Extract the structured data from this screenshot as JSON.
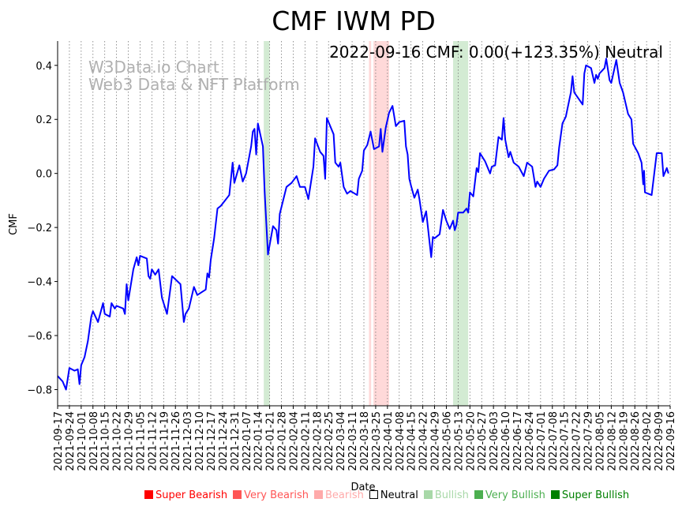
{
  "chart_data": {
    "type": "line",
    "title": "CMF IWM PD",
    "annotation": "2022-09-16 CMF: 0.00(+123.35%) Neutral",
    "watermark": [
      "W3Data.io Chart",
      "Web3 Data & NFT Platform"
    ],
    "xlabel": "Date",
    "ylabel": "CMF",
    "ylim": [
      -0.86,
      0.49
    ],
    "yticks": [
      -0.8,
      -0.6,
      -0.4,
      -0.2,
      0.0,
      0.2,
      0.4
    ],
    "ytick_labels": [
      "−0.8",
      "−0.6",
      "−0.4",
      "−0.2",
      "0.0",
      "0.2",
      "0.4"
    ],
    "x_start_date": "2021-09-17",
    "x_unit": "days since 2021-09-17",
    "xlim": [
      0,
      364
    ],
    "xtick_labels": [
      "2021-09-17",
      "2021-09-24",
      "2021-10-01",
      "2021-10-08",
      "2021-10-15",
      "2021-10-22",
      "2021-10-29",
      "2021-11-05",
      "2021-11-12",
      "2021-11-19",
      "2021-11-26",
      "2021-12-03",
      "2021-12-10",
      "2021-12-17",
      "2021-12-24",
      "2021-12-31",
      "2022-01-07",
      "2022-01-14",
      "2022-01-21",
      "2022-01-28",
      "2022-02-04",
      "2022-02-11",
      "2022-02-18",
      "2022-02-25",
      "2022-03-04",
      "2022-03-11",
      "2022-03-18",
      "2022-03-25",
      "2022-04-01",
      "2022-04-08",
      "2022-04-15",
      "2022-04-22",
      "2022-04-29",
      "2022-05-06",
      "2022-05-13",
      "2022-05-20",
      "2022-05-27",
      "2022-06-03",
      "2022-06-10",
      "2022-06-17",
      "2022-06-24",
      "2022-07-01",
      "2022-07-08",
      "2022-07-15",
      "2022-07-22",
      "2022-07-29",
      "2022-08-05",
      "2022-08-12",
      "2022-08-19",
      "2022-08-26",
      "2022-09-02",
      "2022-09-09",
      "2022-09-16"
    ],
    "grid": "vertical dotted",
    "series": [
      {
        "name": "CMF",
        "color": "#0000ff",
        "points": [
          [
            0,
            -0.75
          ],
          [
            3,
            -0.77
          ],
          [
            5,
            -0.8
          ],
          [
            7,
            -0.72
          ],
          [
            10,
            -0.73
          ],
          [
            12,
            -0.725
          ],
          [
            13,
            -0.78
          ],
          [
            14,
            -0.71
          ],
          [
            16,
            -0.68
          ],
          [
            18,
            -0.62
          ],
          [
            20,
            -0.53
          ],
          [
            21,
            -0.51
          ],
          [
            24,
            -0.55
          ],
          [
            27,
            -0.48
          ],
          [
            28,
            -0.52
          ],
          [
            31,
            -0.53
          ],
          [
            32,
            -0.48
          ],
          [
            34,
            -0.5
          ],
          [
            35,
            -0.49
          ],
          [
            39,
            -0.5
          ],
          [
            40,
            -0.52
          ],
          [
            41,
            -0.41
          ],
          [
            42,
            -0.47
          ],
          [
            45,
            -0.355
          ],
          [
            47,
            -0.31
          ],
          [
            48,
            -0.34
          ],
          [
            49,
            -0.305
          ],
          [
            53,
            -0.315
          ],
          [
            54,
            -0.38
          ],
          [
            55,
            -0.39
          ],
          [
            56,
            -0.355
          ],
          [
            58,
            -0.375
          ],
          [
            60,
            -0.355
          ],
          [
            62,
            -0.46
          ],
          [
            65,
            -0.52
          ],
          [
            68,
            -0.38
          ],
          [
            73,
            -0.41
          ],
          [
            75,
            -0.55
          ],
          [
            76,
            -0.52
          ],
          [
            78,
            -0.5
          ],
          [
            81,
            -0.42
          ],
          [
            83,
            -0.45
          ],
          [
            88,
            -0.43
          ],
          [
            89,
            -0.37
          ],
          [
            90,
            -0.385
          ],
          [
            91,
            -0.32
          ],
          [
            93,
            -0.24
          ],
          [
            95,
            -0.13
          ],
          [
            97,
            -0.12
          ],
          [
            102,
            -0.08
          ],
          [
            104,
            0.04
          ],
          [
            105,
            -0.035
          ],
          [
            108,
            0.03
          ],
          [
            110,
            -0.03
          ],
          [
            112,
            0.0
          ],
          [
            115,
            0.1
          ],
          [
            116,
            0.155
          ],
          [
            117,
            0.165
          ],
          [
            118,
            0.07
          ],
          [
            119,
            0.185
          ],
          [
            122,
            0.1
          ],
          [
            123,
            -0.065
          ],
          [
            125,
            -0.3
          ],
          [
            128,
            -0.195
          ],
          [
            130,
            -0.21
          ],
          [
            131,
            -0.26
          ],
          [
            132,
            -0.15
          ],
          [
            136,
            -0.05
          ],
          [
            139,
            -0.035
          ],
          [
            142,
            -0.01
          ],
          [
            144,
            -0.05
          ],
          [
            147,
            -0.05
          ],
          [
            149,
            -0.095
          ],
          [
            152,
            0.025
          ],
          [
            153,
            0.13
          ],
          [
            156,
            0.08
          ],
          [
            158,
            0.065
          ],
          [
            159,
            -0.02
          ],
          [
            160,
            0.205
          ],
          [
            164,
            0.145
          ],
          [
            165,
            0.04
          ],
          [
            167,
            0.025
          ],
          [
            168,
            0.04
          ],
          [
            170,
            -0.05
          ],
          [
            172,
            -0.075
          ],
          [
            174,
            -0.065
          ],
          [
            178,
            -0.08
          ],
          [
            179,
            -0.02
          ],
          [
            181,
            0.01
          ],
          [
            182,
            0.085
          ],
          [
            184,
            0.105
          ],
          [
            186,
            0.155
          ],
          [
            188,
            0.09
          ],
          [
            191,
            0.1
          ],
          [
            192,
            0.165
          ],
          [
            193,
            0.08
          ],
          [
            195,
            0.17
          ],
          [
            197,
            0.225
          ],
          [
            199,
            0.25
          ],
          [
            201,
            0.175
          ],
          [
            203,
            0.19
          ],
          [
            206,
            0.195
          ],
          [
            207,
            0.1
          ],
          [
            208,
            0.07
          ],
          [
            209,
            -0.02
          ],
          [
            210,
            -0.045
          ],
          [
            212,
            -0.09
          ],
          [
            214,
            -0.06
          ],
          [
            215,
            -0.095
          ],
          [
            217,
            -0.18
          ],
          [
            219,
            -0.14
          ],
          [
            222,
            -0.31
          ],
          [
            223,
            -0.235
          ],
          [
            224,
            -0.24
          ],
          [
            227,
            -0.225
          ],
          [
            229,
            -0.135
          ],
          [
            231,
            -0.175
          ],
          [
            233,
            -0.205
          ],
          [
            235,
            -0.175
          ],
          [
            236,
            -0.21
          ],
          [
            237,
            -0.19
          ],
          [
            238,
            -0.145
          ],
          [
            241,
            -0.145
          ],
          [
            243,
            -0.13
          ],
          [
            244,
            -0.145
          ],
          [
            245,
            -0.07
          ],
          [
            247,
            -0.085
          ],
          [
            249,
            0.02
          ],
          [
            250,
            0.005
          ],
          [
            251,
            0.075
          ],
          [
            254,
            0.045
          ],
          [
            257,
            0.0
          ],
          [
            258,
            0.025
          ],
          [
            260,
            0.03
          ],
          [
            262,
            0.135
          ],
          [
            264,
            0.125
          ],
          [
            265,
            0.205
          ],
          [
            266,
            0.125
          ],
          [
            268,
            0.06
          ],
          [
            269,
            0.08
          ],
          [
            271,
            0.04
          ],
          [
            274,
            0.025
          ],
          [
            277,
            -0.01
          ],
          [
            279,
            0.04
          ],
          [
            282,
            0.025
          ],
          [
            284,
            -0.05
          ],
          [
            285,
            -0.03
          ],
          [
            287,
            -0.05
          ],
          [
            289,
            -0.02
          ],
          [
            292,
            0.01
          ],
          [
            295,
            0.015
          ],
          [
            297,
            0.03
          ],
          [
            298,
            0.095
          ],
          [
            300,
            0.185
          ],
          [
            302,
            0.21
          ],
          [
            305,
            0.3
          ],
          [
            306,
            0.36
          ],
          [
            307,
            0.3
          ],
          [
            312,
            0.255
          ],
          [
            313,
            0.37
          ],
          [
            314,
            0.4
          ],
          [
            317,
            0.39
          ],
          [
            319,
            0.335
          ],
          [
            320,
            0.365
          ],
          [
            321,
            0.35
          ],
          [
            322,
            0.37
          ],
          [
            325,
            0.39
          ],
          [
            326,
            0.425
          ],
          [
            328,
            0.345
          ],
          [
            329,
            0.335
          ],
          [
            332,
            0.42
          ],
          [
            334,
            0.335
          ],
          [
            336,
            0.3
          ],
          [
            339,
            0.22
          ],
          [
            341,
            0.2
          ],
          [
            342,
            0.11
          ],
          [
            345,
            0.075
          ],
          [
            347,
            0.04
          ],
          [
            348,
            -0.04
          ],
          [
            348.5,
            0.01
          ],
          [
            349,
            -0.07
          ],
          [
            353,
            -0.08
          ],
          [
            356,
            0.075
          ],
          [
            359,
            0.075
          ],
          [
            360,
            -0.01
          ],
          [
            362,
            0.02
          ],
          [
            363,
            0.0
          ]
        ]
      }
    ],
    "bands": [
      {
        "from": 122.5,
        "to": 126,
        "sentiment": "Bullish",
        "color": "#a8d8a8"
      },
      {
        "from": 185,
        "to": 186.3,
        "sentiment": "Bearish",
        "color": "#ffb3b3"
      },
      {
        "from": 187.7,
        "to": 197,
        "sentiment": "Bearish",
        "color": "#ffb3b3"
      },
      {
        "from": 235,
        "to": 244,
        "sentiment": "Bullish",
        "color": "#a8d8a8"
      }
    ],
    "legend": [
      {
        "label": "Super Bearish",
        "color": "#ff0000",
        "filled": true
      },
      {
        "label": "Very Bearish",
        "color": "#ff5555",
        "filled": true
      },
      {
        "label": "Bearish",
        "color": "#ffaaaa",
        "filled": true
      },
      {
        "label": "Neutral",
        "color": "#000000",
        "filled": false
      },
      {
        "label": "Bullish",
        "color": "#a8d8a8",
        "filled": true
      },
      {
        "label": "Very Bullish",
        "color": "#4caf50",
        "filled": true
      },
      {
        "label": "Super Bullish",
        "color": "#008000",
        "filled": true
      }
    ],
    "legend_position": "bottom-right"
  }
}
